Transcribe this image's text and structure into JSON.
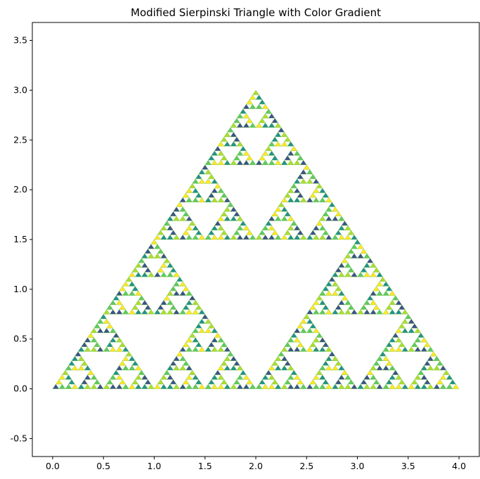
{
  "chart_data": {
    "type": "scatter",
    "title": "Modified Sierpinski Triangle with Color Gradient",
    "xlabel": "",
    "ylabel": "",
    "xlim": [
      -0.2,
      4.2
    ],
    "ylim": [
      -0.68,
      3.68
    ],
    "xticks": [
      "0.0",
      "0.5",
      "1.0",
      "1.5",
      "2.0",
      "2.5",
      "3.0",
      "3.5",
      "4.0"
    ],
    "yticks": [
      "-0.5",
      "0.0",
      "0.5",
      "1.0",
      "1.5",
      "2.0",
      "2.5",
      "3.0",
      "3.5"
    ],
    "grid": false,
    "legend": "none",
    "triangle": {
      "vertices": [
        [
          0,
          0
        ],
        [
          4,
          0
        ],
        [
          2,
          3
        ]
      ],
      "recursion_depth": 6
    },
    "colors": [
      "#3b528b",
      "#21918c",
      "#5ec962",
      "#aadc32",
      "#fde725"
    ]
  }
}
